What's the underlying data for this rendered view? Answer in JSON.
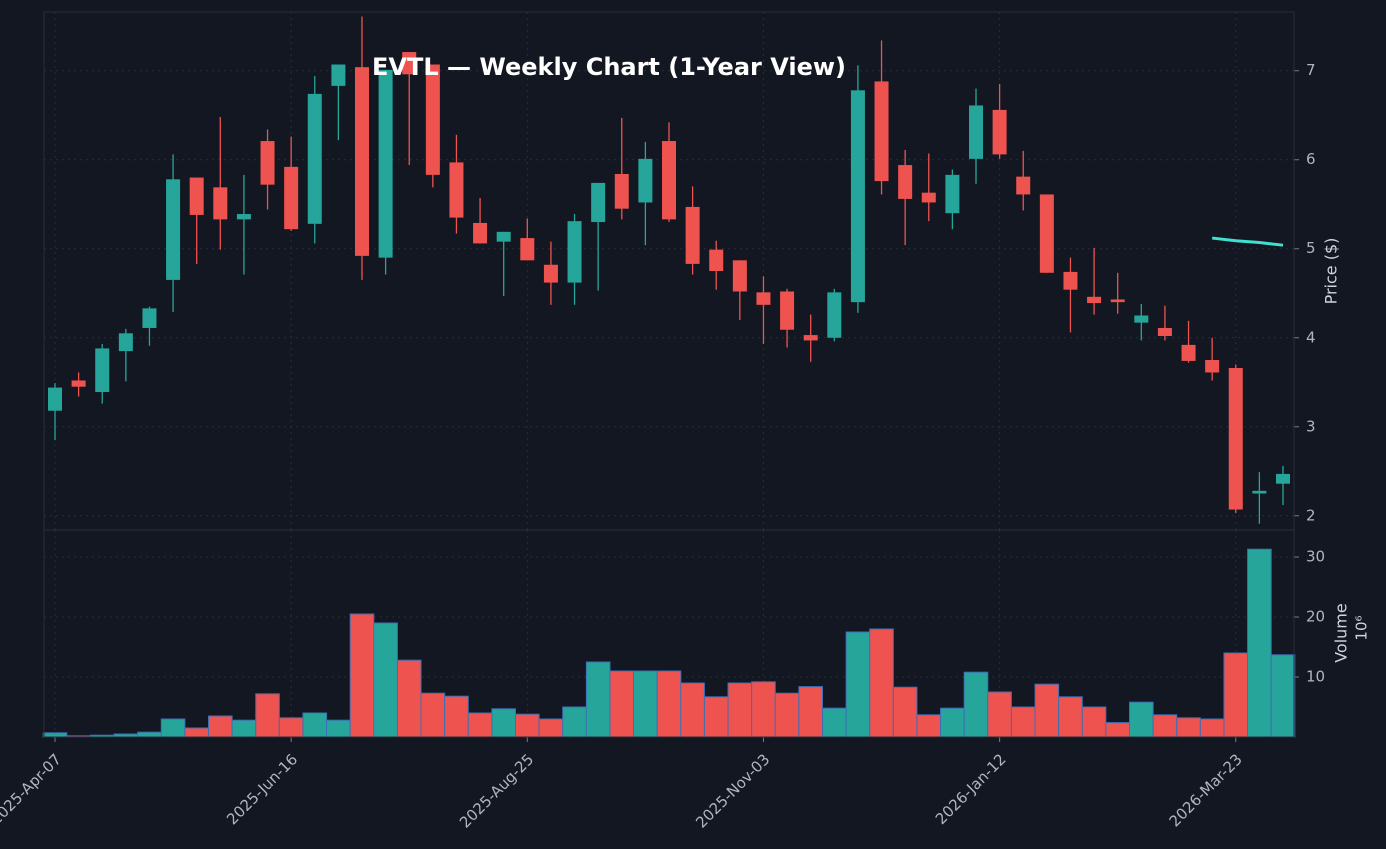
{
  "chart_data": {
    "type": "candlestick",
    "title": "EVTL — Weekly Chart (1-Year View)",
    "y_label": "Price ($)",
    "volume_label": "Volume",
    "volume_scale_label": "10⁶",
    "up_color": "#26a69a",
    "down_color": "#ef5350",
    "categories": [
      "2025-Apr-07",
      null,
      null,
      null,
      null,
      null,
      null,
      null,
      null,
      null,
      "2025-Jun-16",
      null,
      null,
      null,
      null,
      null,
      null,
      null,
      null,
      null,
      "2025-Aug-25",
      null,
      null,
      null,
      null,
      null,
      null,
      null,
      null,
      null,
      "2025-Nov-03",
      null,
      null,
      null,
      null,
      null,
      null,
      null,
      null,
      null,
      "2026-Jan-12",
      null,
      null,
      null,
      null,
      null,
      null,
      null,
      null,
      null,
      "2026-Mar-23",
      null,
      null
    ],
    "open": [
      3.18,
      3.52,
      3.39,
      3.85,
      4.11,
      4.65,
      5.8,
      5.69,
      5.33,
      6.21,
      5.92,
      5.28,
      6.83,
      7.04,
      4.9,
      7.21,
      7.07,
      5.97,
      5.29,
      5.08,
      5.12,
      4.82,
      4.62,
      5.3,
      5.84,
      5.52,
      6.21,
      5.47,
      4.99,
      4.87,
      4.51,
      4.52,
      4.03,
      4.0,
      4.4,
      6.88,
      5.94,
      5.63,
      5.4,
      6.01,
      6.56,
      5.81,
      5.61,
      4.74,
      4.46,
      4.43,
      4.17,
      4.11,
      3.92,
      3.75,
      3.66,
      2.25,
      2.36
    ],
    "high": [
      3.49,
      3.61,
      3.93,
      4.1,
      4.35,
      6.06,
      5.8,
      6.48,
      5.83,
      6.34,
      6.26,
      6.94,
      7.07,
      7.61,
      7.01,
      7.21,
      7.07,
      6.28,
      5.57,
      5.19,
      5.34,
      5.08,
      5.39,
      5.74,
      6.47,
      6.2,
      6.42,
      5.7,
      5.09,
      4.87,
      4.69,
      4.55,
      4.26,
      4.55,
      7.06,
      7.34,
      6.11,
      6.07,
      5.89,
      6.8,
      6.85,
      6.1,
      5.61,
      4.9,
      5.01,
      4.73,
      4.38,
      4.36,
      4.19,
      4.0,
      3.7,
      2.49,
      2.56
    ],
    "low": [
      2.85,
      3.34,
      3.26,
      3.51,
      3.91,
      4.29,
      4.83,
      4.99,
      4.71,
      5.44,
      5.2,
      5.06,
      6.22,
      4.65,
      4.71,
      5.94,
      5.69,
      5.17,
      5.06,
      4.47,
      4.87,
      4.37,
      4.37,
      4.53,
      5.33,
      5.04,
      5.3,
      4.71,
      4.54,
      4.2,
      3.93,
      3.89,
      3.73,
      3.96,
      4.28,
      5.61,
      5.04,
      5.31,
      5.22,
      5.73,
      6.01,
      5.43,
      4.73,
      4.06,
      4.26,
      4.27,
      3.97,
      3.97,
      3.72,
      3.52,
      2.03,
      1.91,
      2.12
    ],
    "close": [
      3.44,
      3.45,
      3.88,
      4.05,
      4.33,
      5.78,
      5.38,
      5.33,
      5.39,
      5.72,
      5.22,
      6.74,
      7.07,
      4.92,
      7.01,
      6.96,
      5.83,
      5.35,
      5.06,
      5.19,
      4.87,
      4.62,
      5.31,
      5.74,
      5.45,
      6.01,
      5.33,
      4.83,
      4.75,
      4.52,
      4.37,
      4.09,
      3.97,
      4.51,
      6.78,
      5.76,
      5.56,
      5.52,
      5.83,
      6.61,
      6.06,
      5.61,
      4.73,
      4.54,
      4.39,
      4.4,
      4.25,
      4.02,
      3.74,
      3.61,
      2.07,
      2.28,
      2.47
    ],
    "volume": [
      0.7,
      0.2,
      0.3,
      0.5,
      0.8,
      3,
      1.5,
      3.5,
      2.8,
      7.2,
      3.2,
      4,
      2.8,
      20.5,
      19,
      12.8,
      7.3,
      6.8,
      4,
      4.7,
      3.8,
      3,
      5,
      12.5,
      11,
      11,
      11,
      9,
      6.7,
      9,
      9.2,
      7.3,
      8.4,
      4.8,
      17.5,
      18,
      8.3,
      3.7,
      4.8,
      10.8,
      7.5,
      5,
      8.8,
      6.7,
      5,
      2.4,
      5.8,
      3.7,
      3.2,
      3,
      14,
      31.3,
      13.7
    ],
    "overlay": {
      "color": "#40e0d0",
      "values": [
        null,
        null,
        null,
        null,
        null,
        null,
        null,
        null,
        null,
        null,
        null,
        null,
        null,
        null,
        null,
        null,
        null,
        null,
        null,
        null,
        null,
        null,
        null,
        null,
        null,
        null,
        null,
        null,
        null,
        null,
        null,
        null,
        null,
        null,
        null,
        null,
        null,
        null,
        null,
        null,
        null,
        null,
        null,
        null,
        null,
        null,
        null,
        null,
        null,
        5.12,
        5.09,
        5.07,
        5.04
      ]
    },
    "ylim": [
      1.84,
      7.66
    ],
    "yticks": [
      2,
      3,
      4,
      5,
      6,
      7
    ],
    "volume_ylim": [
      0,
      34.5
    ],
    "volume_yticks": [
      10,
      20,
      30
    ],
    "grid": true
  }
}
